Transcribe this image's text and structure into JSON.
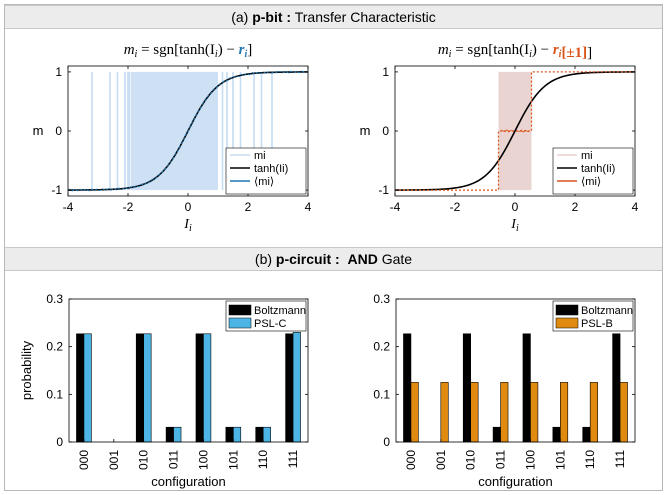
{
  "header_a": {
    "prefix": "(a) ",
    "bold": "p-bit :",
    "rest": " Transfer Characteristic"
  },
  "header_b": {
    "prefix": "(b) ",
    "bold": "p-circuit :",
    "rest": "  ",
    "bold2": "AND",
    "rest2": " Gate"
  },
  "colors": {
    "light_blue": "#c5dcf2",
    "blue": "#1f77b4",
    "orange": "#d9541a",
    "pink": "#e8cfcc",
    "cyan": "#4db5e6",
    "amber": "#e08a10"
  },
  "chart_data": [
    {
      "type": "line",
      "title_parts": [
        "m",
        "i",
        " = sgn[tanh(I",
        "i",
        ") − ",
        "r",
        "i",
        "]"
      ],
      "xlabel": "I",
      "xlabel_sub": "i",
      "ylabel": "m",
      "xlim": [
        -4,
        4
      ],
      "ylim": [
        -1.1,
        1.1
      ],
      "xticks": [
        "-4",
        "-2",
        "0",
        "2",
        "4"
      ],
      "yticks": [
        "-1",
        "0",
        "1"
      ],
      "legend": [
        "mi",
        "tanh(Ii)",
        "⟨mi⟩"
      ],
      "legend_position": "bottom-right",
      "series": [
        {
          "name": "mi",
          "kind": "random sign samples",
          "color": "#c5dcf2"
        },
        {
          "name": "tanh(Ii)",
          "function": "tanh",
          "color": "#000000"
        },
        {
          "name": "⟨mi⟩",
          "function": "tanh",
          "color": "#1f77b4"
        }
      ]
    },
    {
      "type": "line",
      "title_parts": [
        "m",
        "i",
        " = sgn[tanh(I",
        "i",
        ") − ",
        "r",
        "i",
        "[±1]]"
      ],
      "xlabel": "I",
      "xlabel_sub": "i",
      "ylabel": "m",
      "xlim": [
        -4,
        4
      ],
      "ylim": [
        -1.1,
        1.1
      ],
      "xticks": [
        "-4",
        "-2",
        "0",
        "2",
        "4"
      ],
      "yticks": [
        "-1",
        "0",
        "1"
      ],
      "legend": [
        "mi",
        "tanh(Ii)",
        "⟨mi⟩"
      ],
      "legend_position": "bottom-right",
      "series": [
        {
          "name": "mi",
          "kind": "shaded switching band",
          "x_range": [
            -0.55,
            0.55
          ],
          "color": "#e8cfcc"
        },
        {
          "name": "tanh(Ii)",
          "function": "tanh",
          "color": "#000000"
        },
        {
          "name": "⟨mi⟩",
          "kind": "step",
          "steps": [
            [
              -4,
              -1
            ],
            [
              -0.55,
              -1
            ],
            [
              -0.55,
              0
            ],
            [
              0.55,
              0
            ],
            [
              0.55,
              1
            ],
            [
              4,
              1
            ]
          ],
          "color": "#d9541a"
        }
      ]
    },
    {
      "type": "bar",
      "ylabel": "probability",
      "xlabel": "configuration",
      "categories": [
        "000",
        "001",
        "010",
        "011",
        "100",
        "101",
        "110",
        "111"
      ],
      "ylim": [
        0,
        0.3
      ],
      "yticks": [
        "0",
        "0.1",
        "0.2",
        "0.3"
      ],
      "legend_position": "top-right",
      "series": [
        {
          "name": "Boltzmann",
          "color": "#000000",
          "values": [
            0.227,
            0.0,
            0.227,
            0.031,
            0.227,
            0.031,
            0.031,
            0.227
          ]
        },
        {
          "name": "PSL-C",
          "color": "#4db5e6",
          "values": [
            0.227,
            0.0,
            0.227,
            0.031,
            0.227,
            0.031,
            0.031,
            0.23
          ]
        }
      ]
    },
    {
      "type": "bar",
      "ylabel": "",
      "xlabel": "configuration",
      "categories": [
        "000",
        "001",
        "010",
        "011",
        "100",
        "101",
        "110",
        "111"
      ],
      "ylim": [
        0,
        0.3
      ],
      "yticks": [
        "0",
        "0.1",
        "0.2",
        "0.3"
      ],
      "legend_position": "top-right",
      "series": [
        {
          "name": "Boltzmann",
          "color": "#000000",
          "values": [
            0.227,
            0.0,
            0.227,
            0.031,
            0.227,
            0.031,
            0.031,
            0.227
          ]
        },
        {
          "name": "PSL-B",
          "color": "#e08a10",
          "values": [
            0.125,
            0.125,
            0.125,
            0.125,
            0.125,
            0.125,
            0.125,
            0.125
          ]
        }
      ]
    }
  ]
}
